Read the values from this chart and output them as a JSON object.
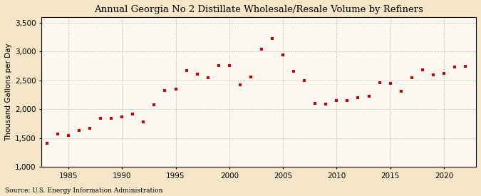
{
  "title": "Annual Georgia No 2 Distillate Wholesale/Resale Volume by Refiners",
  "ylabel": "Thousand Gallons per Day",
  "source": "Source: U.S. Energy Information Administration",
  "background_color": "#f5e6c8",
  "plot_bg_color": "#fdf8f0",
  "marker_color": "#cc0000",
  "years": [
    1983,
    1984,
    1985,
    1986,
    1987,
    1988,
    1989,
    1990,
    1991,
    1992,
    1993,
    1994,
    1995,
    1996,
    1997,
    1998,
    1999,
    2000,
    2001,
    2002,
    2003,
    2004,
    2005,
    2006,
    2007,
    2008,
    2009,
    2010,
    2011,
    2012,
    2013,
    2014,
    2015,
    2016,
    2017,
    2018,
    2019,
    2020,
    2021,
    2022
  ],
  "values": [
    1410,
    1570,
    1545,
    1625,
    1670,
    1840,
    1840,
    1870,
    1920,
    1780,
    2080,
    2320,
    2350,
    2670,
    2610,
    2545,
    2760,
    2760,
    2420,
    2560,
    3040,
    3230,
    2940,
    2655,
    2500,
    2095,
    2085,
    2150,
    2155,
    2200,
    2230,
    2460,
    2450,
    2310,
    2550,
    2680,
    2590,
    2620,
    2730,
    2740
  ],
  "ylim": [
    1000,
    3600
  ],
  "yticks": [
    1000,
    1500,
    2000,
    2500,
    3000,
    3500
  ],
  "xlim": [
    1982.5,
    2023
  ],
  "xticks": [
    1985,
    1990,
    1995,
    2000,
    2005,
    2010,
    2015,
    2020
  ],
  "grid_color": "#aaaaaa",
  "title_fontsize": 9.5,
  "label_fontsize": 7.5,
  "tick_fontsize": 7.5,
  "source_fontsize": 6.5
}
